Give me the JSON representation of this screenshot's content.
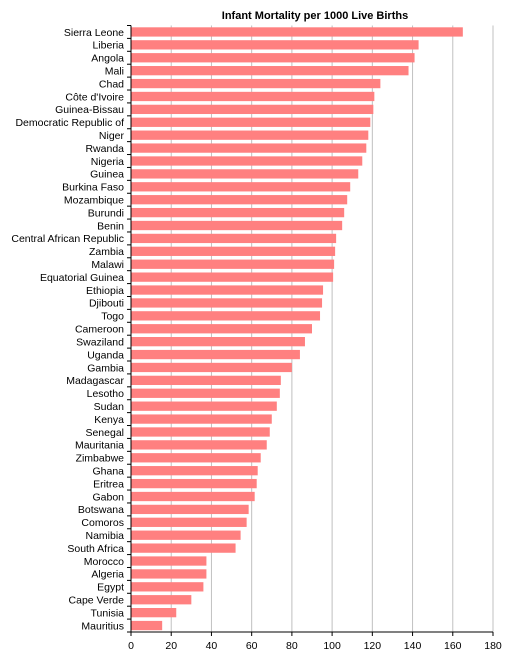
{
  "chart_data": {
    "type": "bar",
    "orientation": "horizontal",
    "title": "Infant Mortality per 1000 Live Births",
    "xlabel": "",
    "ylabel": "",
    "xlim": [
      0,
      180
    ],
    "x_ticks": [
      0,
      20,
      40,
      60,
      80,
      100,
      120,
      140,
      160,
      180
    ],
    "grid": "vertical",
    "bar_color": "#ff8080",
    "categories": [
      "Sierra Leone",
      "Liberia",
      "Angola",
      "Mali",
      "Chad",
      "Côte d'Ivoire",
      "Guinea-Bissau",
      "Democratic Republic of",
      "Niger",
      "Rwanda",
      "Nigeria",
      "Guinea",
      "Burkina Faso",
      "Mozambique",
      "Burundi",
      "Benin",
      "Central African Republic",
      "Zambia",
      "Malawi",
      "Equatorial Guinea",
      "Ethiopia",
      "Djibouti",
      "Togo",
      "Cameroon",
      "Swaziland",
      "Uganda",
      "Gambia",
      "Madagascar",
      "Lesotho",
      "Sudan",
      "Kenya",
      "Senegal",
      "Mauritania",
      "Zimbabwe",
      "Ghana",
      "Eritrea",
      "Gabon",
      "Botswana",
      "Comoros",
      "Namibia",
      "South Africa",
      "Morocco",
      "Algeria",
      "Egypt",
      "Cape Verde",
      "Tunisia",
      "Mauritius"
    ],
    "values": [
      165,
      143,
      141,
      138,
      124,
      121,
      120.5,
      119,
      118,
      117,
      115,
      113,
      109,
      107.5,
      106,
      105,
      102,
      101.5,
      101,
      100.5,
      95.5,
      95,
      94,
      90,
      86.5,
      84,
      80,
      74.5,
      74,
      72.5,
      70,
      69,
      67.5,
      64.5,
      63,
      62.5,
      61.5,
      58.5,
      57.5,
      54.5,
      52,
      37.5,
      37.5,
      36,
      30,
      22.5,
      15.5
    ]
  }
}
